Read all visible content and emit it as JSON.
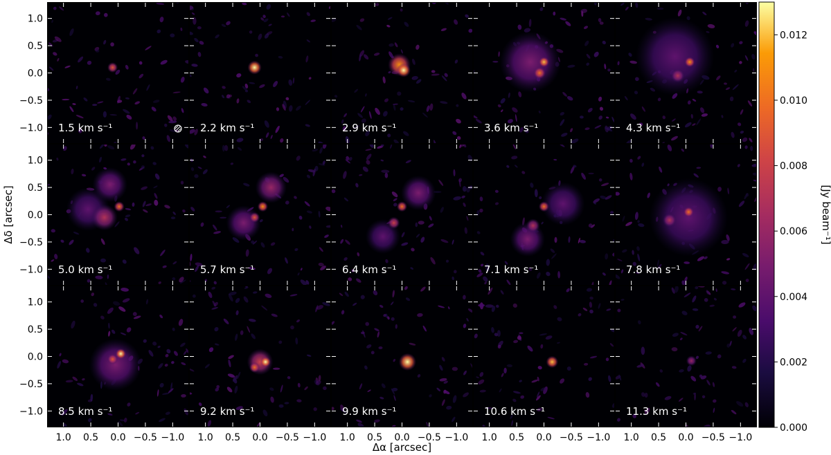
{
  "chart_data": {
    "type": "heatmap",
    "description_type": "channel-map grid",
    "xlabel": "Δα [arcsec]",
    "ylabel": "Δδ [arcsec]",
    "xlim": [
      1.3,
      -1.3
    ],
    "ylim": [
      -1.3,
      1.3
    ],
    "xticks": [
      1.0,
      0.5,
      0.0,
      -0.5,
      -1.0
    ],
    "xtick_labels": [
      "1.0",
      "0.5",
      "0.0",
      "−0.5",
      "−1.0"
    ],
    "yticks": [
      1.0,
      0.5,
      0.0,
      -0.5,
      -1.0
    ],
    "ytick_labels": [
      "1.0",
      "0.5",
      "0.0",
      "−0.5",
      "−1.0"
    ],
    "colorbar": {
      "label": "[Jy beam⁻¹]",
      "range": [
        0.0,
        0.013
      ],
      "ticks": [
        0.0,
        0.002,
        0.004,
        0.006,
        0.008,
        0.01,
        0.012
      ],
      "tick_labels": [
        "0.000",
        "0.002",
        "0.004",
        "0.006",
        "0.008",
        "0.010",
        "0.012"
      ],
      "colormap": "inferno"
    },
    "grid": {
      "rows": 3,
      "cols": 5
    },
    "panels": [
      {
        "label": "1.5 km s⁻¹",
        "velocity": 1.5,
        "beam": true,
        "peak": 0.009,
        "blobs": [
          {
            "x": 0.1,
            "y": 0.1,
            "r": 0.06,
            "v": 0.009
          }
        ]
      },
      {
        "label": "2.2 km s⁻¹",
        "velocity": 2.2,
        "peak": 0.013,
        "blobs": [
          {
            "x": 0.1,
            "y": 0.1,
            "r": 0.08,
            "v": 0.013
          }
        ]
      },
      {
        "label": "2.9 km s⁻¹",
        "velocity": 2.9,
        "peak": 0.013,
        "blobs": [
          {
            "x": 0.05,
            "y": 0.15,
            "r": 0.13,
            "v": 0.011
          },
          {
            "x": -0.03,
            "y": 0.05,
            "r": 0.08,
            "v": 0.013
          }
        ]
      },
      {
        "label": "3.6 km s⁻¹",
        "velocity": 3.6,
        "peak": 0.012,
        "blobs": [
          {
            "x": 0.25,
            "y": 0.2,
            "r": 0.35,
            "v": 0.005
          },
          {
            "x": 0.0,
            "y": 0.2,
            "r": 0.06,
            "v": 0.012
          },
          {
            "x": 0.08,
            "y": 0.0,
            "r": 0.07,
            "v": 0.01
          }
        ]
      },
      {
        "label": "4.3 km s⁻¹",
        "velocity": 4.3,
        "peak": 0.011,
        "blobs": [
          {
            "x": 0.2,
            "y": 0.3,
            "r": 0.45,
            "v": 0.004
          },
          {
            "x": -0.07,
            "y": 0.2,
            "r": 0.06,
            "v": 0.011
          },
          {
            "x": 0.15,
            "y": -0.05,
            "r": 0.08,
            "v": 0.007
          }
        ]
      },
      {
        "label": "5.0 km s⁻¹",
        "velocity": 5.0,
        "peak": 0.01,
        "blobs": [
          {
            "x": 0.15,
            "y": 0.55,
            "r": 0.2,
            "v": 0.005
          },
          {
            "x": 0.55,
            "y": 0.1,
            "r": 0.25,
            "v": 0.004
          },
          {
            "x": 0.25,
            "y": -0.05,
            "r": 0.15,
            "v": 0.007
          },
          {
            "x": -0.02,
            "y": 0.15,
            "r": 0.06,
            "v": 0.01
          }
        ]
      },
      {
        "label": "5.7 km s⁻¹",
        "velocity": 5.7,
        "peak": 0.011,
        "blobs": [
          {
            "x": -0.2,
            "y": 0.5,
            "r": 0.18,
            "v": 0.006
          },
          {
            "x": -0.05,
            "y": 0.15,
            "r": 0.06,
            "v": 0.011
          },
          {
            "x": 0.3,
            "y": -0.15,
            "r": 0.2,
            "v": 0.005
          },
          {
            "x": 0.1,
            "y": -0.05,
            "r": 0.06,
            "v": 0.009
          }
        ]
      },
      {
        "label": "6.4 km s⁻¹",
        "velocity": 6.4,
        "peak": 0.01,
        "blobs": [
          {
            "x": -0.3,
            "y": 0.4,
            "r": 0.2,
            "v": 0.005
          },
          {
            "x": 0.0,
            "y": 0.15,
            "r": 0.06,
            "v": 0.01
          },
          {
            "x": 0.15,
            "y": -0.15,
            "r": 0.07,
            "v": 0.008
          },
          {
            "x": 0.35,
            "y": -0.4,
            "r": 0.2,
            "v": 0.004
          }
        ]
      },
      {
        "label": "7.1 km s⁻¹",
        "velocity": 7.1,
        "peak": 0.01,
        "blobs": [
          {
            "x": -0.35,
            "y": 0.2,
            "r": 0.25,
            "v": 0.004
          },
          {
            "x": 0.0,
            "y": 0.15,
            "r": 0.06,
            "v": 0.01
          },
          {
            "x": 0.2,
            "y": -0.2,
            "r": 0.08,
            "v": 0.007
          },
          {
            "x": 0.3,
            "y": -0.45,
            "r": 0.2,
            "v": 0.005
          }
        ]
      },
      {
        "label": "7.8 km s⁻¹",
        "velocity": 7.8,
        "peak": 0.01,
        "blobs": [
          {
            "x": -0.05,
            "y": -0.05,
            "r": 0.45,
            "v": 0.004
          },
          {
            "x": -0.05,
            "y": 0.05,
            "r": 0.06,
            "v": 0.01
          },
          {
            "x": 0.3,
            "y": -0.1,
            "r": 0.08,
            "v": 0.007
          }
        ]
      },
      {
        "label": "8.5 km s⁻¹",
        "velocity": 8.5,
        "peak": 0.013,
        "blobs": [
          {
            "x": 0.05,
            "y": -0.15,
            "r": 0.3,
            "v": 0.005
          },
          {
            "x": -0.05,
            "y": 0.05,
            "r": 0.06,
            "v": 0.013
          },
          {
            "x": 0.1,
            "y": -0.05,
            "r": 0.06,
            "v": 0.009
          }
        ]
      },
      {
        "label": "9.2 km s⁻¹",
        "velocity": 9.2,
        "peak": 0.013,
        "blobs": [
          {
            "x": 0.0,
            "y": -0.1,
            "r": 0.15,
            "v": 0.008
          },
          {
            "x": -0.1,
            "y": -0.1,
            "r": 0.06,
            "v": 0.013
          },
          {
            "x": 0.1,
            "y": -0.2,
            "r": 0.06,
            "v": 0.01
          }
        ]
      },
      {
        "label": "9.9 km s⁻¹",
        "velocity": 9.9,
        "peak": 0.013,
        "blobs": [
          {
            "x": -0.1,
            "y": -0.1,
            "r": 0.1,
            "v": 0.013
          }
        ]
      },
      {
        "label": "10.6 km s⁻¹",
        "velocity": 10.6,
        "peak": 0.012,
        "blobs": [
          {
            "x": -0.15,
            "y": -0.1,
            "r": 0.07,
            "v": 0.012
          }
        ]
      },
      {
        "label": "11.3 km s⁻¹",
        "velocity": 11.3,
        "peak": 0.006,
        "blobs": [
          {
            "x": -0.1,
            "y": -0.08,
            "r": 0.06,
            "v": 0.006
          }
        ]
      }
    ]
  }
}
